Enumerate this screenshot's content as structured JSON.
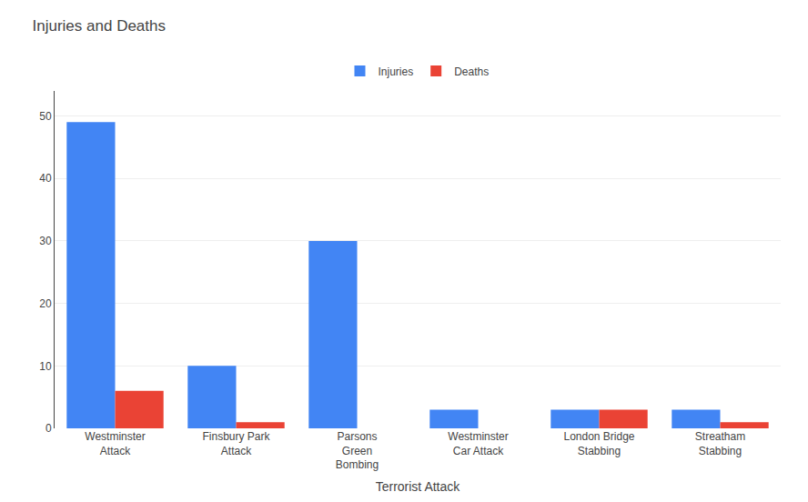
{
  "chart_data": {
    "type": "bar",
    "title": "Injuries and Deaths",
    "xlabel": "Terrorist Attack",
    "categories": [
      "Westminster\nAttack",
      "Finsbury Park\nAttack",
      "Parsons\nGreen\nBombing",
      "Westminster\nCar Attack",
      "London Bridge\nStabbing",
      "Streatham\nStabbing"
    ],
    "series": [
      {
        "name": "Injuries",
        "color": "#4285F4",
        "values": [
          49,
          10,
          30,
          3,
          3,
          3
        ]
      },
      {
        "name": "Deaths",
        "color": "#EA4335",
        "values": [
          6,
          1,
          0,
          0,
          3,
          1
        ]
      }
    ],
    "ylim": [
      0,
      54
    ],
    "yticks": [
      0,
      10,
      20,
      30,
      40,
      50
    ],
    "grid": true,
    "legend": "top"
  }
}
